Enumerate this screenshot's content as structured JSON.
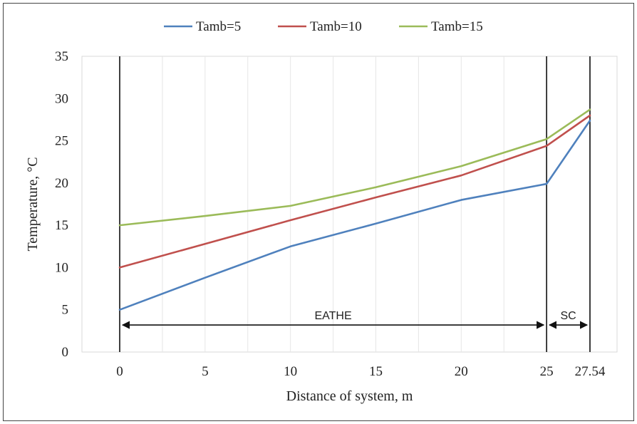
{
  "chart_data": {
    "type": "line",
    "xlabel": "Distance of system, m",
    "ylabel": "Temperature, °C",
    "xlim": [
      0,
      27.54
    ],
    "ylim": [
      0,
      35
    ],
    "x_ticks": [
      0,
      5,
      10,
      15,
      20,
      25,
      27.54
    ],
    "x_tick_labels": [
      "0",
      "5",
      "10",
      "15",
      "20",
      "25",
      "27.54"
    ],
    "y_ticks": [
      0,
      5,
      10,
      15,
      20,
      25,
      30,
      35
    ],
    "grid": "vertical",
    "legend_position": "top",
    "vertical_markers": [
      0,
      25,
      27.54
    ],
    "annotations": [
      {
        "label": "EATHE",
        "from": 0,
        "to": 25,
        "y": 3.2
      },
      {
        "label": "SC",
        "from": 25,
        "to": 27.54,
        "y": 3.2
      }
    ],
    "series": [
      {
        "name": "Tamb=5",
        "color": "#4f81bd",
        "x": [
          0,
          5,
          10,
          15,
          20,
          25,
          27.54
        ],
        "values": [
          5,
          8.8,
          12.5,
          15.2,
          18,
          19.9,
          27.4
        ]
      },
      {
        "name": "Tamb=10",
        "color": "#c0504d",
        "x": [
          0,
          5,
          10,
          15,
          20,
          25,
          27.54
        ],
        "values": [
          10,
          12.8,
          15.6,
          18.3,
          20.9,
          24.4,
          28
        ]
      },
      {
        "name": "Tamb=15",
        "color": "#9bbb59",
        "x": [
          0,
          5,
          10,
          15,
          20,
          25,
          27.54
        ],
        "values": [
          15,
          16.1,
          17.3,
          19.5,
          22,
          25.2,
          28.7
        ]
      }
    ]
  }
}
